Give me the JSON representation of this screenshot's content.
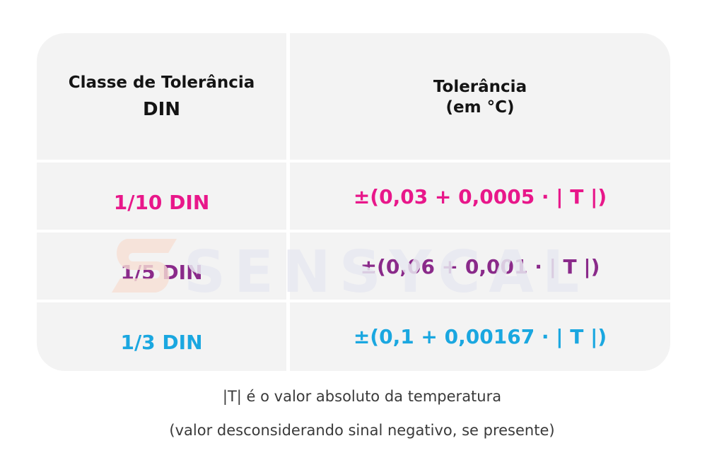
{
  "table": {
    "headers": {
      "class_line1": "Classe de Tolerância",
      "class_line2": "DIN",
      "tol_line1": "Tolerância",
      "tol_line2": "(em °C)"
    },
    "rows": [
      {
        "class": "1/10 DIN",
        "tolerance": "±(0,03 + 0,0005 · | T |)",
        "color": "#e8178a"
      },
      {
        "class": "1/5 DIN",
        "tolerance": "±(0,06 + 0,001 · | T |)",
        "color": "#8a2a8a"
      },
      {
        "class": "1/3 DIN",
        "tolerance": "±(0,1 + 0,00167 · | T |)",
        "color": "#1aa7e0"
      }
    ]
  },
  "watermark": {
    "text": "SENSYCAL"
  },
  "notes": {
    "line1": "|T| é o valor absoluto da temperatura",
    "line2": "(valor desconsiderando sinal negativo, se presente)"
  }
}
